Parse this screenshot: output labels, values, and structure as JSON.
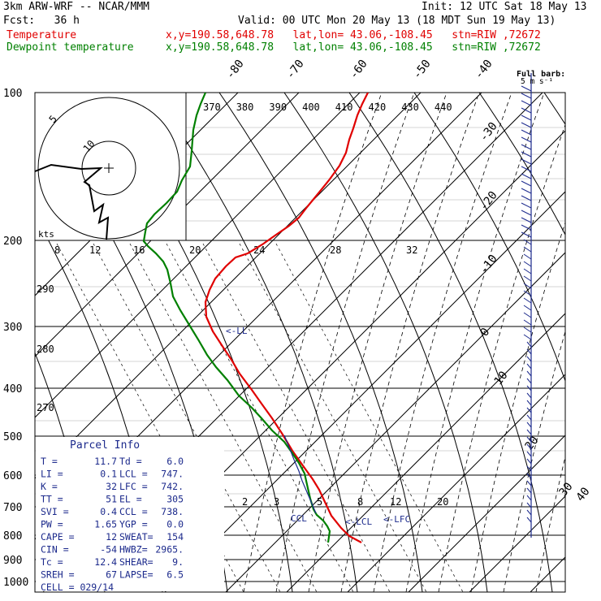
{
  "header": {
    "model": "3km ARW-WRF -- NCAR/MMM",
    "init": "Init: 12 UTC Sat 18 May 13",
    "fcst": "Fcst:   36 h",
    "valid": "Valid: 00 UTC Mon 20 May 13 (18 MDT Sun 19 May 13)",
    "temp_label": "Temperature",
    "dew_label": "Dewpoint temperature",
    "loc": "x,y=190.58,648.78   lat,lon= 43.06,-108.45   stn=RIW ,72672"
  },
  "colors": {
    "temperature": "#e00000",
    "dewpoint": "#008000",
    "parcel": "#1c2a8c",
    "axes": "#000000"
  },
  "barb_legend": {
    "line1": "Full barb:",
    "line2": "5 m s⁻¹"
  },
  "hodograph": {
    "units": "kts",
    "ring_labels": [
      "5",
      "10"
    ]
  },
  "parcel_info": {
    "title": "Parcel Info",
    "rows": [
      [
        "T  =",
        "11.7",
        "Td =",
        "6.0"
      ],
      [
        "LI =",
        "0.1",
        "LCL =",
        "747."
      ],
      [
        "K  =",
        "32",
        "LFC =",
        "742."
      ],
      [
        "TT =",
        "51",
        "EL =",
        "305"
      ],
      [
        "SVI =",
        "0.4",
        "CCL =",
        "738."
      ],
      [
        "PW =",
        "1.65",
        "YGP =",
        "0.0"
      ],
      [
        "CAPE =",
        "12",
        "SWEAT=",
        "154"
      ],
      [
        "CIN =",
        "-54",
        "HWBZ=",
        "2965."
      ],
      [
        "Tc =",
        "12.4",
        "SHEAR=",
        "9."
      ],
      [
        "SREH =",
        "67",
        "LAPSE=",
        "6.5"
      ],
      [
        "CELL = 029/14",
        "",
        "",
        ""
      ]
    ]
  },
  "level_markers": {
    "ll": "<-LL",
    "ccl": "CCL",
    "lcl": "<-LCL",
    "lfc": "<-LFC"
  },
  "chart_data": {
    "type": "line",
    "title": "",
    "pressure_ticks": [
      "100",
      "200",
      "300",
      "400",
      "500",
      "600",
      "700",
      "800",
      "900",
      "1000"
    ],
    "isotherm_labels": [
      "-80",
      "-70",
      "-60",
      "-50",
      "-40",
      "-30",
      "-20",
      "-10",
      "0",
      "10",
      "20",
      "30",
      "40"
    ],
    "theta_labels": [
      "370",
      "380",
      "390",
      "400",
      "410",
      "420",
      "430",
      "440"
    ],
    "mixing_ratio_labels_top": [
      "8",
      "12",
      "16",
      "20",
      "24",
      "28",
      "32"
    ],
    "mixing_ratio_labels_bottom": [
      "2",
      "3",
      "5",
      "8",
      "12",
      "20"
    ],
    "theta_labels_left": [
      "290",
      "280",
      "270"
    ],
    "series": [
      {
        "name": "Temperature",
        "color": "#e00000",
        "points": [
          [
            445,
            668
          ],
          [
            430,
            660
          ],
          [
            420,
            650
          ],
          [
            408,
            635
          ],
          [
            400,
            618
          ],
          [
            393,
            603
          ],
          [
            385,
            590
          ],
          [
            372,
            572
          ],
          [
            360,
            555
          ],
          [
            348,
            535
          ],
          [
            335,
            515
          ],
          [
            322,
            497
          ],
          [
            310,
            480
          ],
          [
            295,
            460
          ],
          [
            285,
            443
          ],
          [
            275,
            428
          ],
          [
            262,
            408
          ],
          [
            254,
            390
          ],
          [
            253,
            372
          ],
          [
            258,
            357
          ],
          [
            265,
            343
          ],
          [
            278,
            328
          ],
          [
            290,
            317
          ],
          [
            305,
            312
          ],
          [
            323,
            301
          ],
          [
            340,
            289
          ],
          [
            356,
            278
          ],
          [
            368,
            268
          ],
          [
            378,
            255
          ],
          [
            392,
            238
          ],
          [
            405,
            222
          ],
          [
            418,
            204
          ],
          [
            426,
            188
          ],
          [
            430,
            172
          ],
          [
            435,
            158
          ],
          [
            440,
            142
          ],
          [
            446,
            128
          ],
          [
            453,
            114
          ]
        ]
      },
      {
        "name": "Dewpoint temperature",
        "color": "#008000",
        "points": [
          [
            404,
            668
          ],
          [
            406,
            654
          ],
          [
            403,
            648
          ],
          [
            398,
            641
          ],
          [
            390,
            634
          ],
          [
            386,
            627
          ],
          [
            382,
            614
          ],
          [
            379,
            601
          ],
          [
            375,
            583
          ],
          [
            368,
            570
          ],
          [
            360,
            558
          ],
          [
            350,
            544
          ],
          [
            335,
            530
          ],
          [
            322,
            515
          ],
          [
            310,
            502
          ],
          [
            294,
            487
          ],
          [
            280,
            468
          ],
          [
            266,
            452
          ],
          [
            255,
            437
          ],
          [
            244,
            418
          ],
          [
            233,
            400
          ],
          [
            222,
            382
          ],
          [
            213,
            365
          ],
          [
            210,
            349
          ],
          [
            206,
            332
          ],
          [
            201,
            322
          ],
          [
            192,
            312
          ],
          [
            182,
            303
          ],
          [
            177,
            297
          ],
          [
            179,
            285
          ],
          [
            181,
            275
          ],
          [
            190,
            264
          ],
          [
            205,
            250
          ],
          [
            218,
            236
          ],
          [
            224,
            222
          ],
          [
            234,
            205
          ],
          [
            236,
            186
          ],
          [
            238,
            160
          ],
          [
            242,
            142
          ],
          [
            247,
            128
          ],
          [
            253,
            114
          ]
        ]
      },
      {
        "name": "Parcel",
        "color": "#1c2a8c",
        "points": [
          [
            389,
            632
          ],
          [
            384,
            620
          ],
          [
            378,
            606
          ],
          [
            372,
            592
          ],
          [
            368,
            580
          ],
          [
            362,
            566
          ],
          [
            355,
            548
          ],
          [
            350,
            536
          ]
        ]
      }
    ],
    "hodograph_trace": [
      [
        43,
        211
      ],
      [
        63,
        203
      ],
      [
        100,
        208
      ],
      [
        124,
        207
      ],
      [
        104,
        224
      ],
      [
        110,
        228
      ],
      [
        116,
        260
      ],
      [
        127,
        252
      ],
      [
        122,
        274
      ],
      [
        133,
        268
      ],
      [
        131,
        295
      ]
    ],
    "wind_barbs_note": "wind profile along right edge",
    "grid": true
  }
}
